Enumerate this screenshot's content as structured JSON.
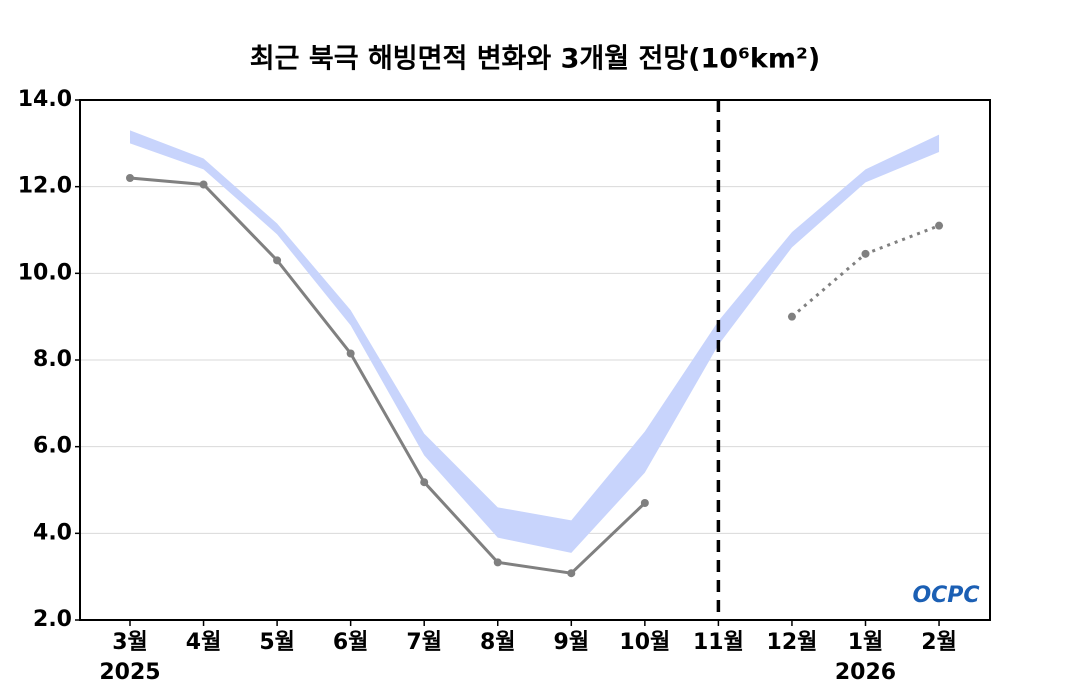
{
  "chart_data": {
    "type": "line",
    "title": "최근 북극 해빙면적 변화와 3개월 전망(10⁶km²)",
    "categories": [
      "3월",
      "4월",
      "5월",
      "6월",
      "7월",
      "8월",
      "9월",
      "10월",
      "11월",
      "12월",
      "1월",
      "2월"
    ],
    "year_labels": [
      "2025",
      null,
      null,
      null,
      null,
      null,
      null,
      null,
      null,
      null,
      "2026",
      null
    ],
    "band": {
      "color": "#c8d4fc",
      "lower": [
        13.0,
        12.4,
        10.9,
        8.8,
        5.8,
        3.9,
        3.55,
        5.4,
        8.35,
        10.6,
        12.1,
        12.8
      ],
      "upper": [
        13.3,
        12.65,
        11.15,
        9.15,
        6.3,
        4.6,
        4.3,
        6.35,
        8.9,
        10.95,
        12.4,
        13.2
      ]
    },
    "series": [
      {
        "color": "#808080",
        "style": "solid",
        "values": [
          12.2,
          12.05,
          10.3,
          8.15,
          5.18,
          3.33,
          3.08,
          4.7,
          null,
          null,
          null,
          null
        ]
      },
      {
        "color": "#808080",
        "style": "dotted",
        "values": [
          null,
          null,
          null,
          null,
          null,
          null,
          null,
          null,
          null,
          9.0,
          10.45,
          11.1
        ]
      }
    ],
    "divider": {
      "x": 8,
      "style": "dashed"
    },
    "ylim": [
      2,
      14
    ],
    "yticks": [
      {
        "value": 2,
        "label": "2.0"
      },
      {
        "value": 4,
        "label": "4.0"
      },
      {
        "value": 6,
        "label": "6.0"
      },
      {
        "value": 8,
        "label": "8.0"
      },
      {
        "value": 10,
        "label": "10.0"
      },
      {
        "value": 12,
        "label": "12.0"
      },
      {
        "value": 14,
        "label": "14.0"
      }
    ],
    "grid": true,
    "logo": "OCPC"
  }
}
